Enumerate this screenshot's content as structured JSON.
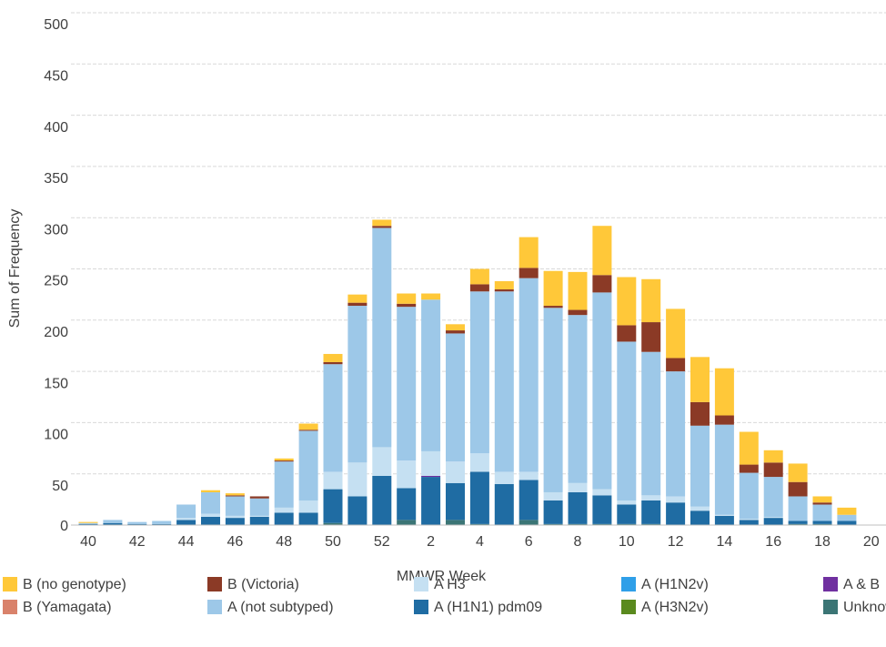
{
  "chart_data": {
    "type": "stacked_bar",
    "x_label": "MMWR Week",
    "y_label": "Sum of Frequency",
    "categories": [
      "40",
      null,
      "42",
      null,
      "44",
      null,
      "46",
      null,
      "48",
      null,
      "50",
      null,
      "52",
      null,
      "2",
      null,
      "4",
      null,
      "6",
      null,
      "8",
      null,
      "10",
      null,
      "12",
      null,
      "14",
      null,
      "16",
      null,
      "18",
      null,
      "20"
    ],
    "ylim": [
      0,
      500
    ],
    "yticks": [
      0,
      50,
      100,
      150,
      200,
      250,
      300,
      350,
      400,
      450,
      500
    ],
    "grid": true,
    "series": [
      {
        "name": "Unknown",
        "color": "#3b7575",
        "values": [
          0,
          0,
          0,
          0,
          0,
          0,
          0,
          0,
          0,
          0,
          2,
          0,
          0,
          5,
          0,
          5,
          1,
          0,
          5,
          1,
          1,
          1,
          1,
          1,
          0,
          0,
          0,
          0,
          0,
          1,
          1,
          0,
          0
        ]
      },
      {
        "name": "A (H3N2v)",
        "color": "#5a8a1e",
        "values": [
          0,
          0,
          0,
          0,
          0,
          0,
          0,
          0,
          0,
          0,
          0,
          0,
          0,
          0,
          0,
          0,
          0,
          0,
          0,
          0,
          0,
          0,
          0,
          0,
          0,
          0,
          0,
          0,
          0,
          0,
          0,
          0,
          0
        ]
      },
      {
        "name": "A (H1N1) pdm09",
        "color": "#1f6ca3",
        "values": [
          1,
          2,
          1,
          1,
          5,
          8,
          7,
          8,
          12,
          12,
          33,
          28,
          48,
          31,
          47,
          36,
          51,
          40,
          39,
          23,
          31,
          28,
          19,
          23,
          22,
          14,
          9,
          5,
          7,
          3,
          3,
          4,
          0
        ]
      },
      {
        "name": "A & B",
        "color": "#7030a0",
        "values": [
          0,
          0,
          0,
          0,
          0,
          0,
          0,
          0,
          0,
          0,
          0,
          0,
          0,
          0,
          1,
          0,
          0,
          0,
          0,
          0,
          0,
          0,
          0,
          0,
          0,
          0,
          0,
          0,
          0,
          0,
          0,
          0,
          0
        ]
      },
      {
        "name": "A (H1N2v)",
        "color": "#2f9fe8",
        "values": [
          0,
          0,
          0,
          0,
          0,
          0,
          0,
          0,
          0,
          0,
          0,
          0,
          0,
          0,
          0,
          0,
          0,
          0,
          0,
          0,
          0,
          0,
          0,
          0,
          0,
          0,
          0,
          0,
          0,
          0,
          0,
          0,
          0
        ]
      },
      {
        "name": "A H3",
        "color": "#c5e0f2",
        "values": [
          0,
          0,
          0,
          0,
          2,
          3,
          2,
          1,
          5,
          12,
          17,
          33,
          28,
          27,
          24,
          21,
          18,
          12,
          8,
          8,
          9,
          6,
          4,
          5,
          6,
          4,
          1,
          1,
          1,
          0,
          0,
          0,
          0
        ]
      },
      {
        "name": "A (not subtyped)",
        "color": "#9dc8e8",
        "values": [
          1,
          3,
          2,
          3,
          13,
          21,
          19,
          17,
          45,
          68,
          105,
          153,
          214,
          150,
          148,
          125,
          158,
          176,
          189,
          180,
          164,
          192,
          155,
          140,
          122,
          79,
          88,
          45,
          39,
          24,
          16,
          6,
          0
        ]
      },
      {
        "name": "B (Yamagata)",
        "color": "#d9826b",
        "values": [
          0,
          0,
          0,
          0,
          0,
          0,
          0,
          0,
          0,
          0,
          0,
          0,
          0,
          0,
          0,
          0,
          0,
          0,
          0,
          0,
          0,
          0,
          0,
          0,
          0,
          0,
          0,
          0,
          0,
          0,
          0,
          0,
          0
        ]
      },
      {
        "name": "B (Victoria)",
        "color": "#8b3a26",
        "values": [
          0,
          0,
          0,
          0,
          0,
          0,
          1,
          2,
          1,
          1,
          2,
          3,
          2,
          3,
          0,
          3,
          7,
          2,
          10,
          2,
          5,
          17,
          16,
          29,
          13,
          23,
          9,
          8,
          14,
          14,
          2,
          0,
          0
        ]
      },
      {
        "name": "B (no genotype)",
        "color": "#ffc839",
        "values": [
          1,
          0,
          0,
          0,
          0,
          2,
          2,
          0,
          2,
          6,
          8,
          8,
          6,
          10,
          6,
          6,
          15,
          8,
          30,
          34,
          37,
          48,
          47,
          42,
          48,
          44,
          46,
          32,
          12,
          18,
          6,
          7,
          0
        ]
      }
    ]
  }
}
